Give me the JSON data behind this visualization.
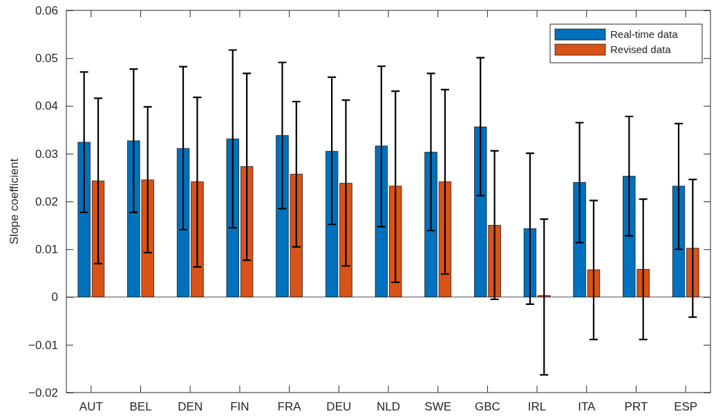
{
  "chart_data": {
    "type": "bar",
    "ylabel": "Slope coefficient",
    "categories": [
      "AUT",
      "BEL",
      "DEN",
      "FIN",
      "FRA",
      "DEU",
      "NLD",
      "SWE",
      "GBC",
      "IRL",
      "ITA",
      "PRT",
      "ESP"
    ],
    "series": [
      {
        "name": "Real-time data",
        "color": "#0072bd",
        "values": [
          0.0324,
          0.0327,
          0.0311,
          0.0331,
          0.0338,
          0.0305,
          0.0316,
          0.0303,
          0.0356,
          0.0143,
          0.024,
          0.0253,
          0.0232
        ],
        "errors": [
          [
            0.0177,
            0.0471
          ],
          [
            0.0177,
            0.0477
          ],
          [
            0.0141,
            0.0482
          ],
          [
            0.0145,
            0.0517
          ],
          [
            0.0185,
            0.0491
          ],
          [
            0.0152,
            0.046
          ],
          [
            0.0147,
            0.0483
          ],
          [
            0.0139,
            0.0468
          ],
          [
            0.0212,
            0.0501
          ],
          [
            -0.0015,
            0.0301
          ],
          [
            0.0114,
            0.0365
          ],
          [
            0.0128,
            0.0378
          ],
          [
            0.01,
            0.0363
          ]
        ]
      },
      {
        "name": "Revised data",
        "color": "#d95319",
        "values": [
          0.0243,
          0.0245,
          0.0241,
          0.0273,
          0.0257,
          0.0238,
          0.0232,
          0.0241,
          0.015,
          0.0003,
          0.0057,
          0.0058,
          0.0102
        ],
        "errors": [
          [
            0.007,
            0.0416
          ],
          [
            0.0093,
            0.0398
          ],
          [
            0.0063,
            0.0418
          ],
          [
            0.0077,
            0.0468
          ],
          [
            0.0105,
            0.0409
          ],
          [
            0.0065,
            0.0412
          ],
          [
            0.0031,
            0.0431
          ],
          [
            0.0048,
            0.0434
          ],
          [
            -0.0005,
            0.0306
          ],
          [
            -0.0163,
            0.0163
          ],
          [
            -0.0089,
            0.0202
          ],
          [
            -0.0089,
            0.0205
          ],
          [
            -0.0042,
            0.0246
          ]
        ]
      }
    ],
    "ylim": [
      -0.02,
      0.06
    ],
    "yticks": [
      {
        "value": -0.02,
        "label": "−0.02"
      },
      {
        "value": -0.01,
        "label": "−0.01"
      },
      0,
      0.01,
      0.02,
      0.03,
      0.04,
      0.05,
      0.06
    ],
    "legend": "top right"
  }
}
